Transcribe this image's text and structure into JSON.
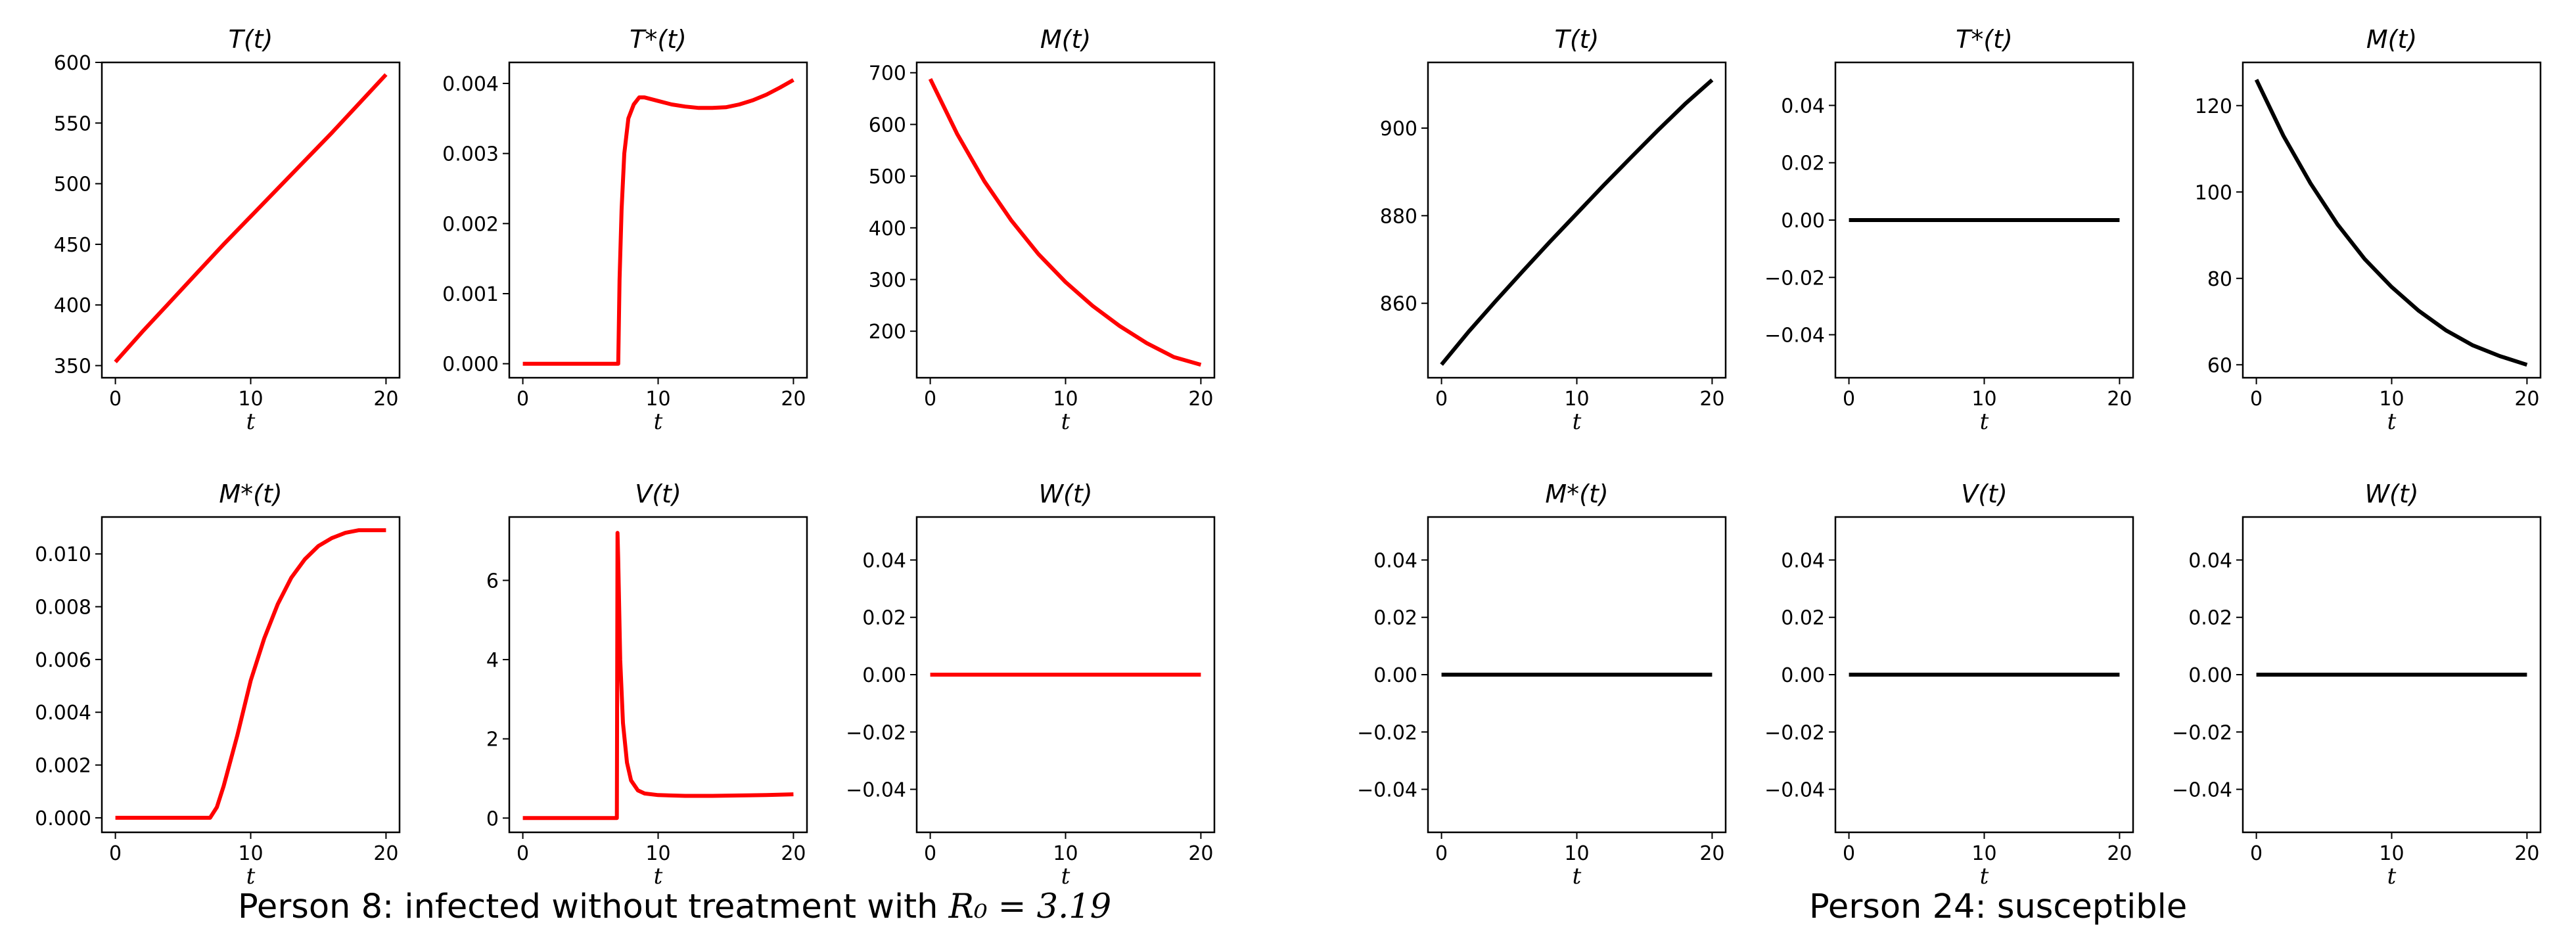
{
  "figure": {
    "captions": [
      {
        "prefix": "Person 8: infected without treatment with ",
        "math": "R₀ = 3.19"
      },
      {
        "prefix": "Person 24: susceptible",
        "math": ""
      }
    ]
  },
  "chart_data": [
    {
      "type": "line",
      "group": "person-8",
      "title": "T(t)",
      "xlabel": "t",
      "color": "#ff0000",
      "xlim": [
        -1,
        21
      ],
      "ylim": [
        340,
        600
      ],
      "xticks": [
        0,
        10,
        20
      ],
      "xtick_labels": [
        "0",
        "10",
        "20"
      ],
      "yticks": [
        350,
        400,
        450,
        500,
        550,
        600
      ],
      "ytick_labels": [
        "350",
        "400",
        "450",
        "500",
        "550",
        "600"
      ],
      "series": [
        {
          "name": "T",
          "x": [
            0,
            2,
            4,
            6,
            8,
            10,
            12,
            14,
            16,
            18,
            20
          ],
          "y": [
            353,
            378,
            402,
            426,
            450,
            473,
            496,
            519,
            542,
            566,
            590
          ]
        }
      ]
    },
    {
      "type": "line",
      "group": "person-8",
      "title": "T*(t)",
      "xlabel": "t",
      "color": "#ff0000",
      "xlim": [
        -1,
        21
      ],
      "ylim": [
        -0.0002,
        0.0043
      ],
      "xticks": [
        0,
        10,
        20
      ],
      "xtick_labels": [
        "0",
        "10",
        "20"
      ],
      "yticks": [
        0,
        0.001,
        0.002,
        0.003,
        0.004
      ],
      "ytick_labels": [
        "0.000",
        "0.001",
        "0.002",
        "0.003",
        "0.004"
      ],
      "series": [
        {
          "name": "T*",
          "x": [
            0,
            6,
            7.05,
            7.15,
            7.3,
            7.5,
            7.8,
            8.2,
            8.6,
            9,
            10,
            11,
            12,
            13,
            14,
            15,
            16,
            17,
            18,
            19,
            20
          ],
          "y": [
            0,
            0,
            0,
            0.0012,
            0.0022,
            0.003,
            0.0035,
            0.0037,
            0.0038,
            0.0038,
            0.00375,
            0.0037,
            0.00367,
            0.00365,
            0.00365,
            0.00366,
            0.0037,
            0.00376,
            0.00384,
            0.00394,
            0.00405
          ]
        }
      ]
    },
    {
      "type": "line",
      "group": "person-8",
      "title": "M(t)",
      "xlabel": "t",
      "color": "#ff0000",
      "xlim": [
        -1,
        21
      ],
      "ylim": [
        110,
        720
      ],
      "xticks": [
        0,
        10,
        20
      ],
      "xtick_labels": [
        "0",
        "10",
        "20"
      ],
      "yticks": [
        200,
        300,
        400,
        500,
        600,
        700
      ],
      "ytick_labels": [
        "200",
        "300",
        "400",
        "500",
        "600",
        "700"
      ],
      "series": [
        {
          "name": "M",
          "x": [
            0,
            2,
            4,
            6,
            8,
            10,
            12,
            14,
            16,
            18,
            20
          ],
          "y": [
            688,
            581,
            490,
            414,
            349,
            295,
            249,
            210,
            177,
            150,
            135
          ]
        }
      ]
    },
    {
      "type": "line",
      "group": "person-8",
      "title": "M*(t)",
      "xlabel": "t",
      "color": "#ff0000",
      "xlim": [
        -1,
        21
      ],
      "ylim": [
        -0.00055,
        0.0114
      ],
      "xticks": [
        0,
        10,
        20
      ],
      "xtick_labels": [
        "0",
        "10",
        "20"
      ],
      "yticks": [
        0,
        0.002,
        0.004,
        0.006,
        0.008,
        0.01
      ],
      "ytick_labels": [
        "0.000",
        "0.002",
        "0.004",
        "0.006",
        "0.008",
        "0.010"
      ],
      "series": [
        {
          "name": "M*",
          "x": [
            0,
            7,
            7.5,
            8,
            9,
            10,
            11,
            12,
            13,
            14,
            15,
            16,
            17,
            18,
            19,
            20
          ],
          "y": [
            0,
            0,
            0.0004,
            0.0012,
            0.0031,
            0.0052,
            0.0068,
            0.0081,
            0.0091,
            0.0098,
            0.0103,
            0.0106,
            0.0108,
            0.0109,
            0.0109,
            0.0109
          ]
        }
      ]
    },
    {
      "type": "line",
      "group": "person-8",
      "title": "V(t)",
      "xlabel": "t",
      "color": "#ff0000",
      "xlim": [
        -1,
        21
      ],
      "ylim": [
        -0.36,
        7.6
      ],
      "xticks": [
        0,
        10,
        20
      ],
      "xtick_labels": [
        "0",
        "10",
        "20"
      ],
      "yticks": [
        0,
        2,
        4,
        6
      ],
      "ytick_labels": [
        "0",
        "2",
        "4",
        "6"
      ],
      "series": [
        {
          "name": "V",
          "x": [
            0,
            6.95,
            7.0,
            7.05,
            7.2,
            7.4,
            7.7,
            8,
            8.5,
            9,
            10,
            12,
            14,
            16,
            18,
            20
          ],
          "y": [
            0,
            0,
            7.2,
            6.5,
            4.0,
            2.4,
            1.4,
            0.95,
            0.7,
            0.62,
            0.58,
            0.56,
            0.56,
            0.57,
            0.58,
            0.6
          ]
        }
      ]
    },
    {
      "type": "line",
      "group": "person-8",
      "title": "W(t)",
      "xlabel": "t",
      "color": "#ff0000",
      "xlim": [
        -1,
        21
      ],
      "ylim": [
        -0.055,
        0.055
      ],
      "xticks": [
        0,
        10,
        20
      ],
      "xtick_labels": [
        "0",
        "10",
        "20"
      ],
      "yticks": [
        -0.04,
        -0.02,
        0,
        0.02,
        0.04
      ],
      "ytick_labels": [
        "−0.04",
        "−0.02",
        "0.00",
        "0.02",
        "0.04"
      ],
      "series": [
        {
          "name": "W",
          "x": [
            0,
            20
          ],
          "y": [
            0,
            0
          ]
        }
      ]
    },
    {
      "type": "line",
      "group": "person-24",
      "title": "T(t)",
      "xlabel": "t",
      "color": "#000000",
      "xlim": [
        -1,
        21
      ],
      "ylim": [
        843,
        915
      ],
      "xticks": [
        0,
        10,
        20
      ],
      "xtick_labels": [
        "0",
        "10",
        "20"
      ],
      "yticks": [
        860,
        880,
        900
      ],
      "ytick_labels": [
        "860",
        "880",
        "900"
      ],
      "series": [
        {
          "name": "T",
          "x": [
            0,
            2,
            4,
            6,
            8,
            10,
            12,
            14,
            16,
            18,
            20
          ],
          "y": [
            846,
            853.5,
            860.5,
            867.3,
            874,
            880.5,
            887,
            893.3,
            899.5,
            905.5,
            911
          ]
        }
      ]
    },
    {
      "type": "line",
      "group": "person-24",
      "title": "T*(t)",
      "xlabel": "t",
      "color": "#000000",
      "xlim": [
        -1,
        21
      ],
      "ylim": [
        -0.055,
        0.055
      ],
      "xticks": [
        0,
        10,
        20
      ],
      "xtick_labels": [
        "0",
        "10",
        "20"
      ],
      "yticks": [
        -0.04,
        -0.02,
        0,
        0.02,
        0.04
      ],
      "ytick_labels": [
        "−0.04",
        "−0.02",
        "0.00",
        "0.02",
        "0.04"
      ],
      "series": [
        {
          "name": "T*",
          "x": [
            0,
            20
          ],
          "y": [
            0,
            0
          ]
        }
      ]
    },
    {
      "type": "line",
      "group": "person-24",
      "title": "M(t)",
      "xlabel": "t",
      "color": "#000000",
      "xlim": [
        -1,
        21
      ],
      "ylim": [
        57,
        130
      ],
      "xticks": [
        0,
        10,
        20
      ],
      "xtick_labels": [
        "0",
        "10",
        "20"
      ],
      "yticks": [
        60,
        80,
        100,
        120
      ],
      "ytick_labels": [
        "60",
        "80",
        "100",
        "120"
      ],
      "series": [
        {
          "name": "M",
          "x": [
            0,
            2,
            4,
            6,
            8,
            10,
            12,
            14,
            16,
            18,
            20
          ],
          "y": [
            126,
            113,
            102,
            92.5,
            84.5,
            78,
            72.5,
            68,
            64.5,
            62,
            60
          ]
        }
      ]
    },
    {
      "type": "line",
      "group": "person-24",
      "title": "M*(t)",
      "xlabel": "t",
      "color": "#000000",
      "xlim": [
        -1,
        21
      ],
      "ylim": [
        -0.055,
        0.055
      ],
      "xticks": [
        0,
        10,
        20
      ],
      "xtick_labels": [
        "0",
        "10",
        "20"
      ],
      "yticks": [
        -0.04,
        -0.02,
        0,
        0.02,
        0.04
      ],
      "ytick_labels": [
        "−0.04",
        "−0.02",
        "0.00",
        "0.02",
        "0.04"
      ],
      "series": [
        {
          "name": "M*",
          "x": [
            0,
            20
          ],
          "y": [
            0,
            0
          ]
        }
      ]
    },
    {
      "type": "line",
      "group": "person-24",
      "title": "V(t)",
      "xlabel": "t",
      "color": "#000000",
      "xlim": [
        -1,
        21
      ],
      "ylim": [
        -0.055,
        0.055
      ],
      "xticks": [
        0,
        10,
        20
      ],
      "xtick_labels": [
        "0",
        "10",
        "20"
      ],
      "yticks": [
        -0.04,
        -0.02,
        0,
        0.02,
        0.04
      ],
      "ytick_labels": [
        "−0.04",
        "−0.02",
        "0.00",
        "0.02",
        "0.04"
      ],
      "series": [
        {
          "name": "V",
          "x": [
            0,
            20
          ],
          "y": [
            0,
            0
          ]
        }
      ]
    },
    {
      "type": "line",
      "group": "person-24",
      "title": "W(t)",
      "xlabel": "t",
      "color": "#000000",
      "xlim": [
        -1,
        21
      ],
      "ylim": [
        -0.055,
        0.055
      ],
      "xticks": [
        0,
        10,
        20
      ],
      "xtick_labels": [
        "0",
        "10",
        "20"
      ],
      "yticks": [
        -0.04,
        -0.02,
        0,
        0.02,
        0.04
      ],
      "ytick_labels": [
        "−0.04",
        "−0.02",
        "0.00",
        "0.02",
        "0.04"
      ],
      "series": [
        {
          "name": "W",
          "x": [
            0,
            20
          ],
          "y": [
            0,
            0
          ]
        }
      ]
    }
  ]
}
